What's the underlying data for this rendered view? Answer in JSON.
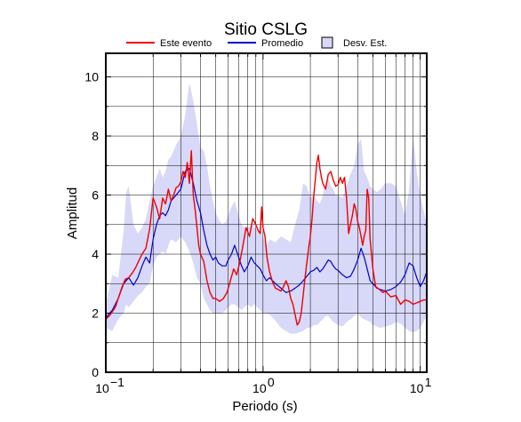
{
  "chart_data": {
    "type": "line",
    "title": "Sitio CSLG",
    "xlabel": "Periodo (s)",
    "ylabel": "Amplitud",
    "xscale": "log",
    "xlim": [
      0.1,
      11
    ],
    "ylim": [
      0,
      10.8
    ],
    "x_ticks": [
      0.1,
      1,
      10
    ],
    "x_tick_labels": [
      {
        "base": "10",
        "exp": "−1"
      },
      {
        "base": "10",
        "exp": "0"
      },
      {
        "base": "10",
        "exp": "1"
      }
    ],
    "y_ticks": [
      0,
      2,
      4,
      6,
      8,
      10
    ],
    "y_tick_labels": [
      "0",
      "2",
      "4",
      "6",
      "8",
      "10"
    ],
    "grid": true,
    "legend_position": "top",
    "legend": [
      "Este evento",
      "Promedio",
      "Desv. Est."
    ],
    "colors": {
      "event": "#ee0000",
      "mean": "#0000cc",
      "band": "#d8d8f8",
      "band_edge": "#000000"
    },
    "series": [
      {
        "name": "Este evento",
        "x": [
          0.1,
          0.105,
          0.11,
          0.115,
          0.12,
          0.127,
          0.133,
          0.14,
          0.147,
          0.155,
          0.163,
          0.17,
          0.18,
          0.19,
          0.2,
          0.21,
          0.22,
          0.23,
          0.24,
          0.25,
          0.26,
          0.27,
          0.28,
          0.29,
          0.3,
          0.31,
          0.32,
          0.33,
          0.34,
          0.35,
          0.36,
          0.37,
          0.38,
          0.39,
          0.4,
          0.42,
          0.44,
          0.46,
          0.48,
          0.5,
          0.53,
          0.56,
          0.59,
          0.62,
          0.65,
          0.68,
          0.71,
          0.74,
          0.78,
          0.82,
          0.86,
          0.9,
          0.93,
          0.96,
          0.98,
          1.0,
          1.03,
          1.06,
          1.1,
          1.15,
          1.2,
          1.25,
          1.3,
          1.35,
          1.4,
          1.45,
          1.5,
          1.55,
          1.6,
          1.65,
          1.7,
          1.75,
          1.8,
          1.85,
          1.9,
          1.95,
          2.0,
          2.05,
          2.1,
          2.15,
          2.2,
          2.25,
          2.3,
          2.35,
          2.4,
          2.5,
          2.6,
          2.7,
          2.8,
          2.9,
          3.0,
          3.1,
          3.2,
          3.3,
          3.4,
          3.5,
          3.6,
          3.7,
          3.8,
          3.9,
          4.0,
          4.1,
          4.2,
          4.3,
          4.4,
          4.5,
          4.6,
          4.7,
          4.8,
          5.0,
          5.2,
          5.5,
          5.8,
          6.0,
          6.5,
          7.0,
          7.5,
          8.0,
          8.5,
          9.0,
          9.5,
          10.0,
          10.5,
          11.0
        ],
        "y": [
          1.8,
          1.9,
          2.05,
          2.2,
          2.5,
          2.9,
          3.15,
          3.2,
          3.35,
          3.55,
          3.8,
          4.0,
          4.2,
          4.85,
          5.9,
          5.6,
          5.2,
          5.9,
          5.7,
          6.2,
          5.8,
          6.0,
          6.25,
          6.3,
          6.45,
          6.8,
          6.6,
          7.1,
          6.4,
          7.5,
          6.0,
          5.5,
          4.9,
          4.3,
          4.0,
          3.75,
          3.1,
          2.7,
          2.5,
          2.5,
          2.4,
          2.5,
          2.7,
          3.1,
          3.5,
          3.3,
          3.7,
          4.2,
          4.9,
          4.6,
          5.2,
          5.0,
          4.8,
          4.7,
          5.6,
          4.9,
          4.6,
          3.9,
          3.4,
          3.05,
          2.85,
          2.8,
          2.75,
          2.9,
          3.1,
          2.9,
          2.5,
          2.3,
          1.95,
          1.6,
          1.7,
          2.0,
          2.6,
          3.2,
          3.7,
          4.2,
          4.6,
          5.2,
          5.95,
          6.5,
          7.1,
          7.35,
          6.9,
          6.6,
          6.4,
          6.2,
          6.7,
          6.8,
          6.5,
          6.3,
          6.35,
          6.6,
          6.4,
          6.6,
          5.9,
          4.7,
          5.0,
          5.3,
          5.7,
          5.5,
          5.1,
          4.9,
          4.6,
          4.3,
          4.6,
          4.8,
          6.2,
          5.9,
          4.5,
          3.5,
          2.9,
          2.8,
          2.7,
          2.75,
          2.55,
          2.6,
          2.3,
          2.45,
          2.4,
          2.3,
          2.35,
          2.4,
          2.45,
          2.45
        ]
      },
      {
        "name": "Promedio",
        "x": [
          0.1,
          0.11,
          0.12,
          0.13,
          0.14,
          0.15,
          0.16,
          0.17,
          0.18,
          0.19,
          0.2,
          0.21,
          0.22,
          0.23,
          0.24,
          0.25,
          0.26,
          0.28,
          0.3,
          0.32,
          0.34,
          0.36,
          0.38,
          0.4,
          0.42,
          0.44,
          0.46,
          0.48,
          0.5,
          0.52,
          0.55,
          0.58,
          0.6,
          0.63,
          0.66,
          0.7,
          0.73,
          0.76,
          0.8,
          0.84,
          0.88,
          0.92,
          0.96,
          1.0,
          1.05,
          1.1,
          1.2,
          1.3,
          1.4,
          1.5,
          1.6,
          1.7,
          1.8,
          1.9,
          2.0,
          2.1,
          2.2,
          2.3,
          2.4,
          2.5,
          2.6,
          2.7,
          2.8,
          2.9,
          3.0,
          3.2,
          3.4,
          3.6,
          3.8,
          4.0,
          4.2,
          4.4,
          4.6,
          4.8,
          5.0,
          5.3,
          5.6,
          6.0,
          6.5,
          7.0,
          7.5,
          8.0,
          8.5,
          9.0,
          9.5,
          10.0,
          10.5,
          11.0
        ],
        "y": [
          1.85,
          2.1,
          2.5,
          3.0,
          3.2,
          2.95,
          3.2,
          3.6,
          3.9,
          3.7,
          4.5,
          5.0,
          5.3,
          5.4,
          5.3,
          5.5,
          5.8,
          6.0,
          6.2,
          6.8,
          6.9,
          6.4,
          5.8,
          5.4,
          4.8,
          4.3,
          4.0,
          3.8,
          3.9,
          3.7,
          3.6,
          3.6,
          3.8,
          4.0,
          4.3,
          3.9,
          3.6,
          3.4,
          3.6,
          3.9,
          3.7,
          3.6,
          3.5,
          3.3,
          3.1,
          3.2,
          3.0,
          2.85,
          2.7,
          2.75,
          2.85,
          2.95,
          3.1,
          3.25,
          3.4,
          3.45,
          3.55,
          3.4,
          3.5,
          3.65,
          3.8,
          3.75,
          3.6,
          3.5,
          3.45,
          3.3,
          3.2,
          3.25,
          3.5,
          3.8,
          4.2,
          3.9,
          3.5,
          3.1,
          3.0,
          2.85,
          2.8,
          2.75,
          2.8,
          2.9,
          3.05,
          3.3,
          3.7,
          3.6,
          3.2,
          2.9,
          3.1,
          3.4
        ]
      }
    ],
    "band": {
      "name": "Desv. Est.",
      "x": [
        0.1,
        0.11,
        0.12,
        0.13,
        0.135,
        0.14,
        0.15,
        0.16,
        0.17,
        0.18,
        0.19,
        0.2,
        0.21,
        0.22,
        0.23,
        0.24,
        0.25,
        0.26,
        0.28,
        0.3,
        0.32,
        0.34,
        0.36,
        0.38,
        0.4,
        0.42,
        0.44,
        0.46,
        0.48,
        0.5,
        0.52,
        0.55,
        0.58,
        0.6,
        0.63,
        0.66,
        0.7,
        0.73,
        0.76,
        0.8,
        0.84,
        0.88,
        0.92,
        0.96,
        1.0,
        1.05,
        1.1,
        1.2,
        1.3,
        1.4,
        1.5,
        1.6,
        1.7,
        1.8,
        1.9,
        2.0,
        2.1,
        2.2,
        2.3,
        2.4,
        2.5,
        2.6,
        2.7,
        2.8,
        2.9,
        3.0,
        3.2,
        3.4,
        3.6,
        3.8,
        4.0,
        4.2,
        4.4,
        4.6,
        4.8,
        5.0,
        5.3,
        5.6,
        6.0,
        6.5,
        7.0,
        7.5,
        8.0,
        8.5,
        9.0,
        9.5,
        10.0,
        10.5,
        11.0
      ],
      "upper": [
        2.3,
        3.3,
        3.2,
        4.8,
        6.1,
        6.3,
        5.0,
        4.7,
        4.9,
        5.2,
        5.8,
        6.3,
        6.6,
        6.9,
        6.6,
        6.8,
        7.2,
        7.3,
        7.7,
        8.0,
        8.7,
        9.8,
        9.2,
        8.4,
        7.6,
        7.5,
        7.0,
        6.3,
        5.8,
        5.4,
        5.2,
        5.0,
        5.1,
        5.3,
        5.6,
        5.8,
        5.3,
        5.0,
        4.9,
        4.9,
        5.0,
        4.9,
        4.8,
        4.9,
        4.6,
        4.3,
        4.5,
        4.4,
        4.6,
        4.5,
        4.4,
        5.0,
        5.5,
        6.4,
        6.3,
        5.9,
        6.0,
        5.8,
        5.7,
        6.0,
        6.4,
        6.6,
        6.3,
        6.2,
        6.0,
        6.0,
        5.9,
        6.3,
        6.7,
        7.0,
        7.7,
        7.9,
        6.8,
        6.6,
        6.3,
        6.2,
        6.1,
        6.2,
        6.4,
        6.4,
        6.3,
        5.8,
        5.3,
        6.2,
        8.0,
        6.8,
        6.0,
        5.5,
        5.0
      ],
      "lower": [
        1.5,
        1.4,
        1.8,
        2.0,
        2.3,
        2.2,
        2.4,
        2.6,
        2.7,
        2.9,
        3.0,
        3.6,
        3.9,
        4.0,
        4.1,
        4.0,
        4.3,
        4.5,
        4.4,
        4.6,
        4.4,
        4.1,
        3.7,
        3.2,
        3.0,
        2.5,
        2.3,
        2.1,
        2.0,
        2.0,
        2.0,
        2.0,
        2.1,
        2.2,
        2.3,
        2.3,
        2.2,
        2.1,
        2.2,
        2.3,
        2.2,
        2.3,
        2.2,
        2.1,
        2.0,
        2.0,
        1.95,
        1.75,
        1.5,
        1.4,
        1.3,
        1.3,
        1.35,
        1.4,
        1.5,
        1.5,
        1.6,
        1.6,
        1.7,
        1.8,
        1.9,
        1.9,
        1.8,
        1.7,
        1.65,
        1.6,
        1.55,
        1.7,
        1.8,
        1.9,
        2.0,
        1.85,
        1.8,
        1.75,
        1.7,
        1.6,
        1.55,
        1.5,
        1.55,
        1.6,
        1.7,
        1.65,
        1.5,
        1.4,
        1.35,
        1.4,
        1.5,
        1.7,
        1.9
      ]
    }
  }
}
